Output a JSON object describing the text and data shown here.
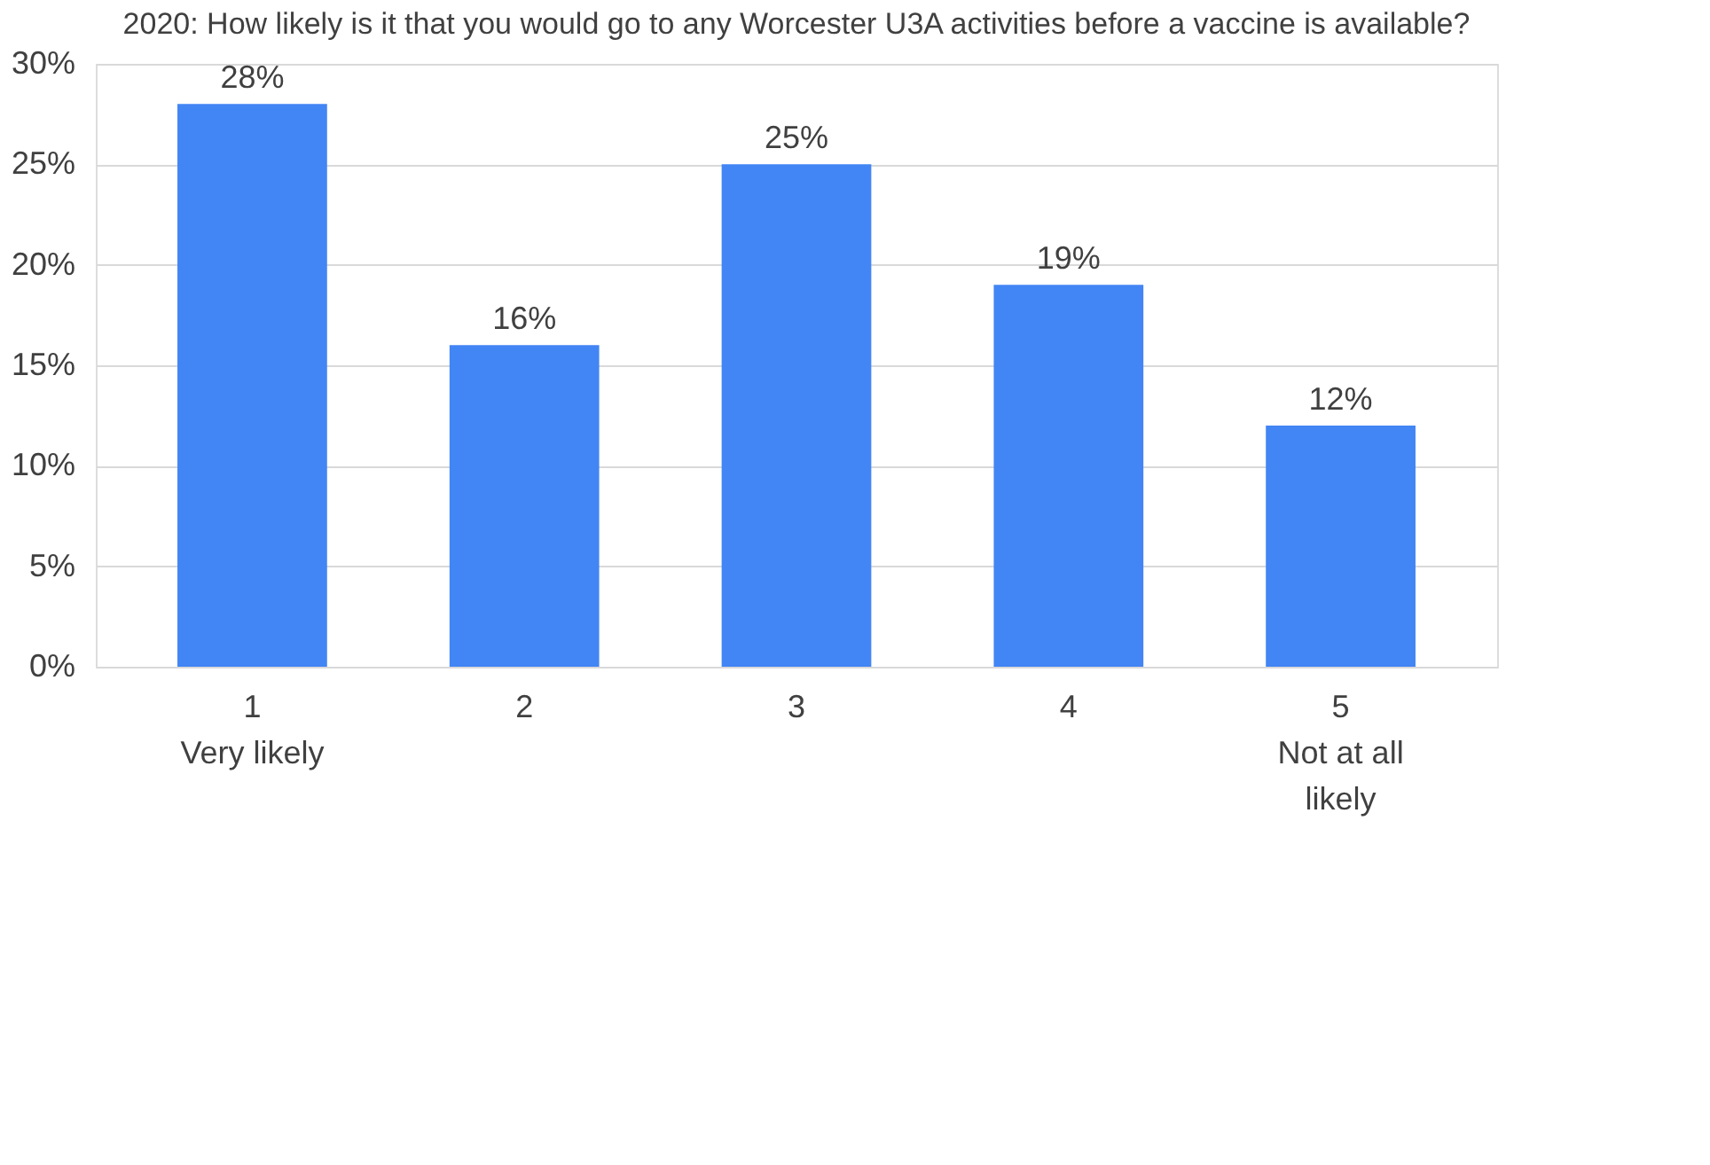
{
  "chart_data": {
    "type": "bar",
    "title": "2020: How likely is it that you would go to any Worcester U3A activities before a vaccine is available?",
    "categories": [
      "1\nVery likely",
      "2",
      "3",
      "4",
      "5\nNot at all\nlikely"
    ],
    "values": [
      28,
      16,
      25,
      19,
      12
    ],
    "value_labels": [
      "28%",
      "16%",
      "25%",
      "19%",
      "12%"
    ],
    "color": "#4285f4",
    "ylim": [
      0,
      30
    ],
    "yticks": [
      {
        "value": 0,
        "label": "0%"
      },
      {
        "value": 5,
        "label": "5%"
      },
      {
        "value": 10,
        "label": "10%"
      },
      {
        "value": 15,
        "label": "15%"
      },
      {
        "value": 20,
        "label": "20%"
      },
      {
        "value": 25,
        "label": "25%"
      },
      {
        "value": 30,
        "label": "30%"
      }
    ],
    "grid": "y"
  }
}
